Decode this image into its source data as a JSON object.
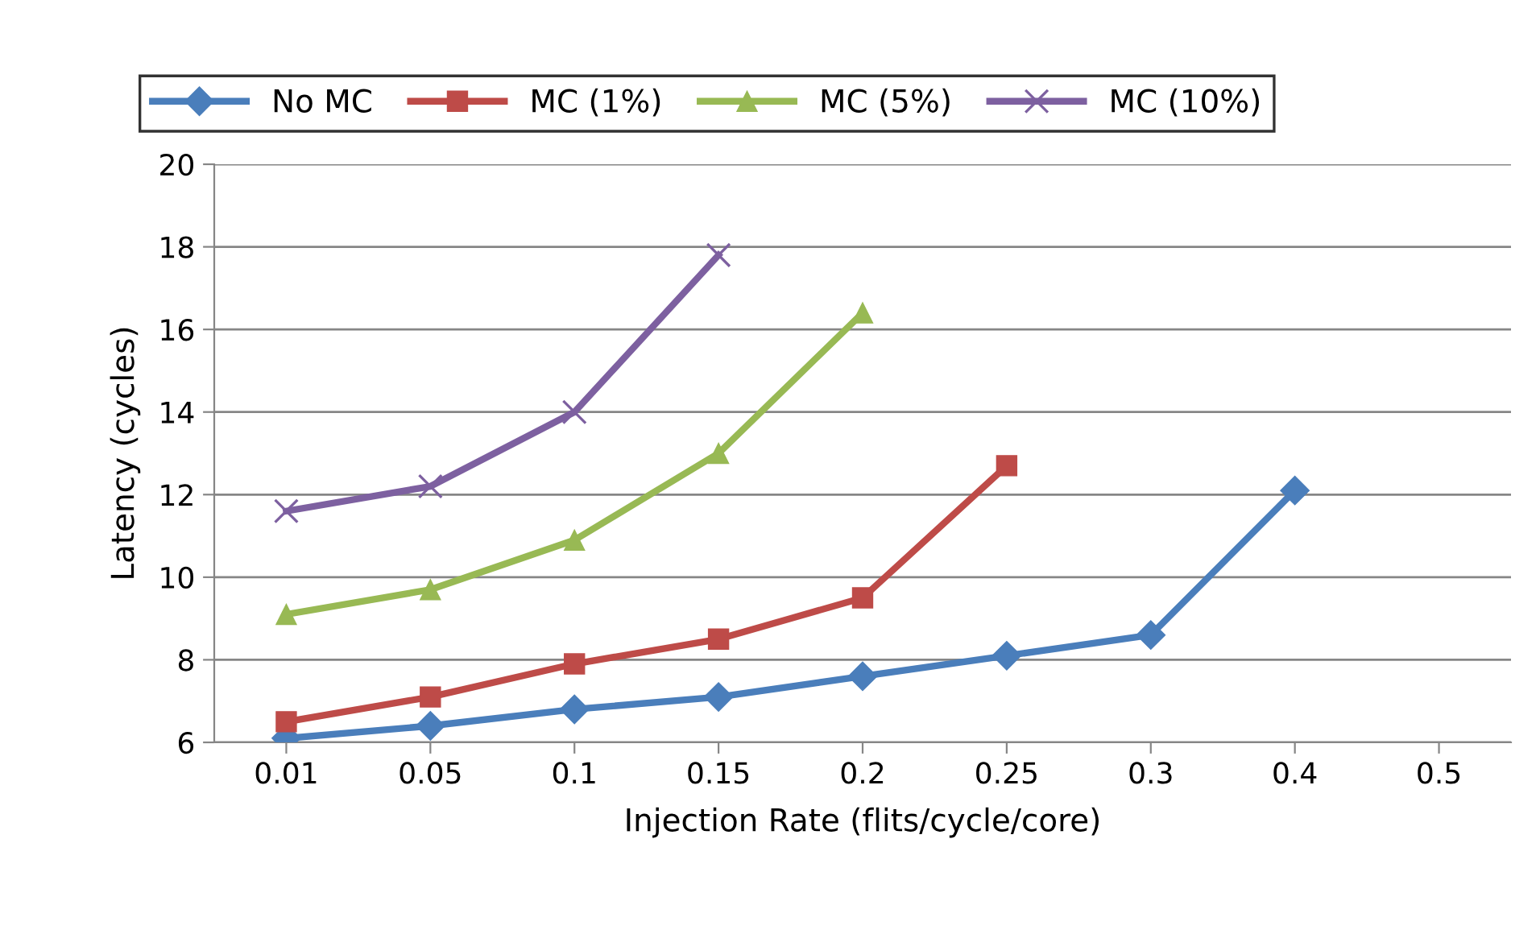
{
  "chart_data": {
    "type": "line",
    "xlabel": "Injection Rate (flits/cycle/core)",
    "ylabel": "Latency (cycles)",
    "categories": [
      "0.01",
      "0.05",
      "0.1",
      "0.15",
      "0.2",
      "0.25",
      "0.3",
      "0.4",
      "0.5"
    ],
    "series": [
      {
        "name": "No MC",
        "color": "#4a7ebb",
        "marker": "diamond",
        "values": [
          6.1,
          6.4,
          6.8,
          7.1,
          7.6,
          8.1,
          8.6,
          12.1,
          null
        ]
      },
      {
        "name": "MC (1%)",
        "color": "#be4b48",
        "marker": "square",
        "values": [
          6.5,
          7.1,
          7.9,
          8.5,
          9.5,
          12.7,
          null,
          null,
          null
        ]
      },
      {
        "name": "MC (5%)",
        "color": "#98b954",
        "marker": "triangle",
        "values": [
          9.1,
          9.7,
          10.9,
          13.0,
          16.4,
          null,
          null,
          null,
          null
        ]
      },
      {
        "name": "MC (10%)",
        "color": "#7d60a0",
        "marker": "cross",
        "values": [
          11.6,
          12.2,
          14.0,
          17.8,
          null,
          null,
          null,
          null,
          null
        ]
      }
    ],
    "ylim": [
      6,
      20
    ],
    "yticks": [
      6,
      8,
      10,
      12,
      14,
      16,
      18,
      20
    ],
    "grid": "y",
    "legend": "top",
    "line_style": "solid"
  }
}
